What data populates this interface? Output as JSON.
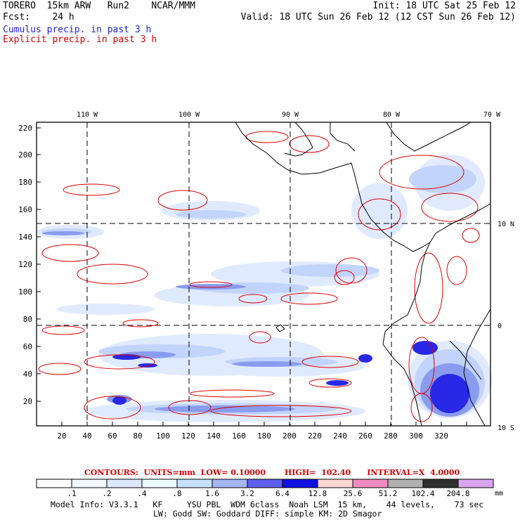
{
  "header": {
    "model": "TORERO  15km ARW   Run2    NCAR/MMM",
    "forecast": "Fcst:    24 h",
    "init": "Init: 18 UTC Sat 25 Feb 12",
    "valid": "Valid: 18 UTC Sun 26 Feb 12 (12 CST Sun 26 Feb 12)",
    "field1": "Cumulus precip. in past 3 h",
    "field2": "Explicit precip. in past 3 h"
  },
  "axes": {
    "lon_labels": [
      "110 W",
      "100 W",
      "90 W",
      "80 W",
      "70 W"
    ],
    "lat_labels": [
      "10 N",
      "0",
      "10 S"
    ],
    "x_ticks": [
      "20",
      "40",
      "60",
      "80",
      "100",
      "120",
      "140",
      "160",
      "180",
      "200",
      "220",
      "240",
      "260",
      "280",
      "300",
      "320"
    ],
    "y_ticks": [
      "220",
      "200",
      "180",
      "160",
      "140",
      "120",
      "100",
      "80",
      "60",
      "40",
      "20"
    ]
  },
  "contours": {
    "label": "CONTOURS:  UNITS=mm  LOW= 0.10000       HIGH=  102.40      INTERVAL=X  4.0000"
  },
  "colorbar": {
    "labels": [
      ".1",
      ".2",
      ".4",
      ".8",
      "1.6",
      "3.2",
      "6.4",
      "12.8",
      "25.6",
      "51.2",
      "102.4",
      "204.8"
    ],
    "colors": [
      "#ffffff",
      "#f3f7ff",
      "#dde8ff",
      "#eefcff",
      "#c6e0ff",
      "#a6b6f2",
      "#5e5ef0",
      "#1010e0",
      "#ffd6d6",
      "#f08cc0",
      "#b0b0b0",
      "#303030",
      "#d8a4f0"
    ],
    "unit": "mm"
  },
  "model_info": {
    "line1": "Model Info: V3.3.1   KF     YSU PBL  WDM 6class  Noah LSM  15 km,    44 levels,    73 sec",
    "line2": "LW: Godd SW: Goddard DIFF: simple KM: 2D Smagor"
  },
  "colors": {
    "land_outline": "#000000",
    "explicit_contour": "#e00000",
    "grid": "#000000"
  }
}
